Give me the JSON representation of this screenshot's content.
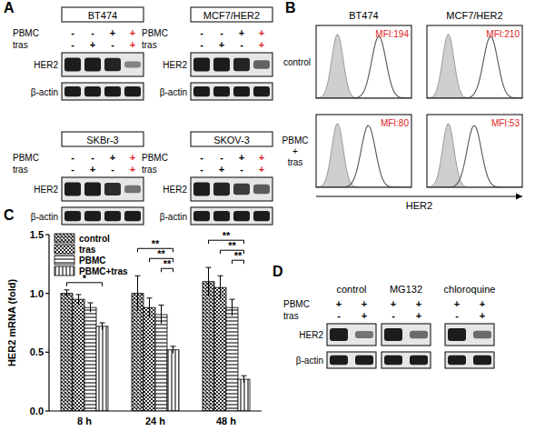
{
  "panel_letters": [
    "A",
    "B",
    "C",
    "D"
  ],
  "panel_a": {
    "highlight": true,
    "blots": [
      {
        "title": "BT474",
        "conditions": [
          {
            "label": "PBMC",
            "signs": [
              "-",
              "-",
              "+",
              "+"
            ]
          },
          {
            "label": "tras",
            "signs": [
              "-",
              "+",
              "-",
              "+"
            ]
          }
        ],
        "bands": [
          {
            "label": "HER2",
            "intensity": [
              1,
              1,
              0.95,
              0.35
            ]
          },
          {
            "label": "β-actin",
            "intensity": [
              1,
              1,
              1,
              1
            ]
          }
        ]
      },
      {
        "title": "MCF7/HER2",
        "conditions": [
          {
            "label": "PBMC",
            "signs": [
              "-",
              "-",
              "+",
              "+"
            ]
          },
          {
            "label": "tras",
            "signs": [
              "-",
              "+",
              "-",
              "+"
            ]
          }
        ],
        "bands": [
          {
            "label": "HER2",
            "intensity": [
              1,
              1,
              0.95,
              0.55
            ]
          },
          {
            "label": "β-actin",
            "intensity": [
              1,
              1,
              1,
              1
            ]
          }
        ]
      },
      {
        "title": "SKBr-3",
        "conditions": [
          {
            "label": "PBMC",
            "signs": [
              "-",
              "-",
              "+",
              "+"
            ]
          },
          {
            "label": "tras",
            "signs": [
              "-",
              "+",
              "-",
              "+"
            ]
          }
        ],
        "bands": [
          {
            "label": "HER2",
            "intensity": [
              1,
              1,
              0.9,
              0.45
            ]
          },
          {
            "label": "β-actin",
            "intensity": [
              1,
              1,
              1,
              1
            ]
          }
        ]
      },
      {
        "title": "SKOV-3",
        "conditions": [
          {
            "label": "PBMC",
            "signs": [
              "-",
              "-",
              "+",
              "+"
            ]
          },
          {
            "label": "tras",
            "signs": [
              "-",
              "+",
              "-",
              "+"
            ]
          }
        ],
        "bands": [
          {
            "label": "HER2",
            "intensity": [
              1,
              0.95,
              0.8,
              0.6
            ]
          },
          {
            "label": "β-actin",
            "intensity": [
              1,
              1,
              1,
              1
            ]
          }
        ]
      }
    ]
  },
  "panel_b": {
    "columns": [
      "BT474",
      "MCF7/HER2"
    ],
    "axis_label": "HER2",
    "xlim": [
      1,
      3000
    ],
    "log": "x",
    "tick_labels": false,
    "rows": [
      {
        "label_lines": [
          "control"
        ],
        "mfi": [
          194,
          210
        ],
        "mfi_labels": [
          "MFI:194",
          "MFI:210"
        ],
        "isotype": [
          6,
          6
        ]
      },
      {
        "label_lines": [
          "PBMC",
          "+",
          "tras"
        ],
        "mfi": [
          80,
          53
        ],
        "mfi_labels": [
          "MFI:80",
          "MFI:53"
        ],
        "isotype": [
          6,
          6
        ]
      }
    ]
  },
  "chart_data": {
    "type": "bar",
    "y_label": "HER2 mRNA (fold)",
    "categories": [
      "8 h",
      "24 h",
      "48 h"
    ],
    "series": [
      {
        "name": "control",
        "color": "#222222",
        "values": [
          1.0,
          1.0,
          1.1
        ],
        "errors": [
          0.03,
          0.15,
          0.12
        ]
      },
      {
        "name": "tras",
        "color": "#222222",
        "values": [
          0.95,
          0.88,
          1.05
        ],
        "errors": [
          0.04,
          0.08,
          0.1
        ]
      },
      {
        "name": "PBMC",
        "color": "#222222",
        "values": [
          0.88,
          0.82,
          0.88
        ],
        "errors": [
          0.04,
          0.08,
          0.07
        ]
      },
      {
        "name": "PBMC+tras",
        "color": "#222222",
        "values": [
          0.72,
          0.52,
          0.27
        ],
        "errors": [
          0.03,
          0.03,
          0.03
        ]
      }
    ],
    "ylim": [
      0,
      1.5
    ],
    "yticks": [
      {
        "value": 0,
        "label": "0.0"
      },
      {
        "value": 0.5,
        "label": "0.5"
      },
      {
        "value": 1,
        "label": "1.0"
      },
      {
        "value": 1.5,
        "label": "1.5"
      }
    ],
    "legend": "top-left",
    "annotations": [
      {
        "category": 0,
        "from": 0,
        "to": 3,
        "label": "*"
      },
      {
        "category": 1,
        "from": 0,
        "to": 3,
        "label": "**"
      },
      {
        "category": 1,
        "from": 1,
        "to": 3,
        "label": "**"
      },
      {
        "category": 1,
        "from": 2,
        "to": 3,
        "label": "**"
      },
      {
        "category": 2,
        "from": 0,
        "to": 3,
        "label": "**"
      },
      {
        "category": 2,
        "from": 1,
        "to": 3,
        "label": "**"
      },
      {
        "category": 2,
        "from": 2,
        "to": 3,
        "label": "**"
      }
    ]
  },
  "panel_d": {
    "conditions": [
      "PBMC",
      "tras"
    ],
    "band_labels": [
      "HER2",
      "β-actin"
    ],
    "groups": [
      {
        "title": "control",
        "signs": [
          [
            "+",
            "+"
          ],
          [
            "-",
            "+"
          ]
        ],
        "bands": [
          [
            1,
            0.45
          ],
          [
            1,
            1
          ]
        ]
      },
      {
        "title": "MG132",
        "signs": [
          [
            "+",
            "+"
          ],
          [
            "-",
            "+"
          ]
        ],
        "bands": [
          [
            1,
            0.5
          ],
          [
            1,
            1
          ]
        ]
      },
      {
        "title": "chloroquine",
        "signs": [
          [
            "+",
            "+"
          ],
          [
            "-",
            "+"
          ]
        ],
        "bands": [
          [
            1,
            0.5
          ],
          [
            1,
            1
          ]
        ]
      }
    ]
  }
}
